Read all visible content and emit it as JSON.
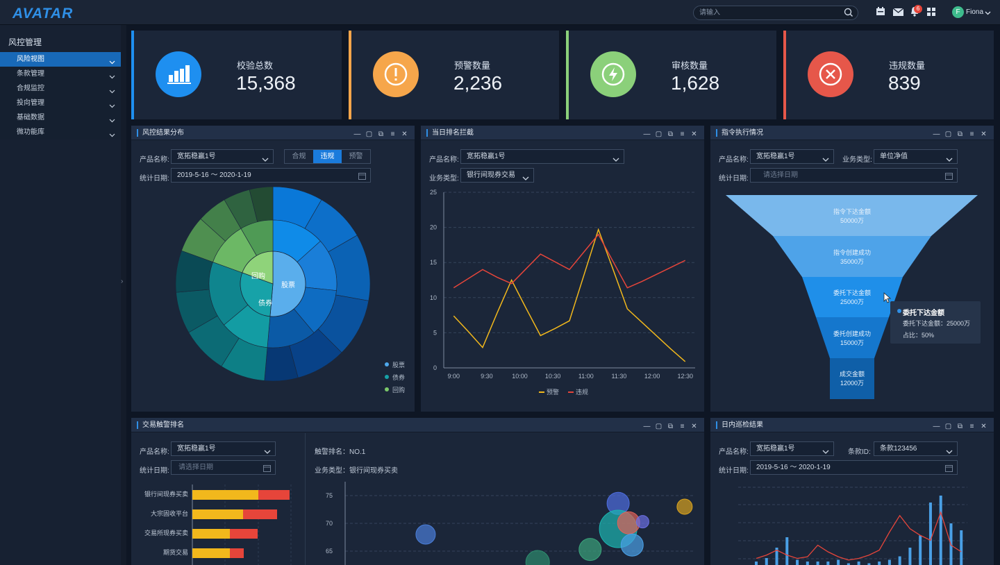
{
  "topbar": {
    "logo": "AVATAR",
    "search_placeholder": "请输入",
    "notification_count": "6",
    "user_initial": "F",
    "user_name": "Fiona"
  },
  "sidebar": {
    "title": "风控管理",
    "items": [
      {
        "label": "风险视图",
        "active": true
      },
      {
        "label": "条款管理"
      },
      {
        "label": "合规监控"
      },
      {
        "label": "投向管理"
      },
      {
        "label": "基础数据"
      },
      {
        "label": "微功能库"
      }
    ]
  },
  "stats": [
    {
      "label": "校验总数",
      "value": "15,368",
      "color": "#1e8ff0",
      "icon": "bar-chart-icon"
    },
    {
      "label": "预警数量",
      "value": "2,236",
      "color": "#f6a64b",
      "icon": "alert-icon"
    },
    {
      "label": "审核数量",
      "value": "1,628",
      "color": "#8bd07a",
      "icon": "lightning-icon"
    },
    {
      "label": "违规数量",
      "value": "839",
      "color": "#e6574a",
      "icon": "close-circle-icon"
    }
  ],
  "panel1": {
    "title": "风控结果分布",
    "product_label": "产品名称:",
    "product_value": "宽拓稳赢1号",
    "tabs": [
      "合规",
      "违规",
      "预警"
    ],
    "active_tab": "违规",
    "date_label": "统计日期:",
    "date_value": "2019-5-16 ～ 2020-1-19",
    "center_labels": [
      "回购",
      "股票",
      "债券"
    ],
    "legend": [
      "股票",
      "债券",
      "回购"
    ],
    "colors": {
      "股票": "#4fa8ec",
      "债券": "#17a2a8",
      "回购": "#7bc86a"
    }
  },
  "panel2": {
    "title": "当日排名拦截",
    "product_label": "产品名称:",
    "product_value": "宽拓稳赢1号",
    "biz_label": "业务类型:",
    "biz_value": "银行间现券交易"
  },
  "panel3": {
    "title": "指令执行情况",
    "product_label": "产品名称:",
    "product_value": "宽拓稳赢1号",
    "biz_label": "业务类型:",
    "biz_value": "单位净值",
    "date_label": "统计日期:",
    "date_placeholder": "请选择日期",
    "funnel": [
      {
        "name": "指令下达金额",
        "value": "50000万",
        "color": "#79b8ec"
      },
      {
        "name": "指令创建成功",
        "value": "35000万",
        "color": "#4ea3e9"
      },
      {
        "name": "委托下达金额",
        "value": "25000万",
        "color": "#1f8fe9"
      },
      {
        "name": "委托创建成功",
        "value": "15000万",
        "color": "#1577cd"
      },
      {
        "name": "成交金额",
        "value": "12000万",
        "color": "#0f5fa8"
      }
    ],
    "tooltip": {
      "title": "委托下达金额",
      "line1": "委托下达金额：25000万",
      "line2": "占比：50%"
    }
  },
  "panel4": {
    "title": "交易触警排名",
    "product_label": "产品名称:",
    "product_value": "宽拓稳赢1号",
    "date_label": "统计日期:",
    "date_placeholder": "请选择日期",
    "rank_label": "触警排名：",
    "rank_value": "NO.1",
    "biz_label": "业务类型：",
    "biz_value": "银行间现券买卖"
  },
  "panel5": {
    "title": "日内巡检结果",
    "product_label": "产品名称:",
    "product_value": "宽拓稳赢1号",
    "clause_label": "条款ID:",
    "clause_value": "条款123456",
    "date_label": "统计日期:",
    "date_value": "2019-5-16 ～ 2020-1-19"
  },
  "chart_data": [
    {
      "type": "line",
      "x": [
        "9:00",
        "9:30",
        "10:00",
        "10:30",
        "11:00",
        "11:30",
        "12:00",
        "12:30"
      ],
      "ylim": [
        0,
        25
      ],
      "yticks": [
        0,
        5,
        10,
        15,
        20,
        25
      ],
      "series": [
        {
          "name": "预警",
          "color": "#f2b81c",
          "x": [
            0,
            0.5,
            1,
            1.5,
            2,
            2.5,
            3,
            3.5,
            4,
            4.5,
            5,
            5.5,
            6,
            6.5,
            7,
            7.5,
            8
          ],
          "values": [
            7.4,
            5.2,
            2.9,
            7.8,
            12.5,
            8.5,
            4.6,
            5.6,
            6.7,
            13.2,
            19.7,
            14.1,
            8.4,
            6.5,
            4.6,
            2.7,
            0.9
          ]
        },
        {
          "name": "违规",
          "color": "#e6453a",
          "x": [
            0,
            0.5,
            1,
            1.5,
            2,
            2.5,
            3,
            3.5,
            4,
            4.5,
            5,
            5.5,
            6,
            6.5,
            7,
            7.5,
            8
          ],
          "values": [
            11.4,
            12.7,
            14.0,
            12.9,
            12.0,
            14.1,
            16.2,
            15.1,
            14.0,
            16.5,
            19.0,
            15.2,
            11.4,
            12.3,
            13.3,
            14.3,
            15.3
          ]
        }
      ],
      "legend": [
        "预警",
        "违规"
      ]
    },
    {
      "type": "bar",
      "categories": [
        "银行间现券买卖",
        "大宗固收平台",
        "交易所现券买卖",
        "期货交易"
      ],
      "series": [
        {
          "color": "#f2b81c",
          "values": [
            95,
            73,
            54,
            54
          ]
        },
        {
          "color": "#e6453a",
          "values": [
            45,
            49,
            40,
            20
          ]
        }
      ]
    },
    {
      "type": "scatter",
      "yticks": [
        65,
        70,
        75
      ],
      "ylim": [
        62.5,
        77.5
      ],
      "points": [
        {
          "x": 0.23,
          "y": 68.0,
          "r": 14,
          "color": "#4a7ed8"
        },
        {
          "x": 0.55,
          "y": 63.0,
          "r": 17,
          "color": "#2e8c6e"
        },
        {
          "x": 0.7,
          "y": 65.3,
          "r": 16,
          "color": "#3aa37a"
        },
        {
          "x": 0.78,
          "y": 73.6,
          "r": 16,
          "color": "#4e6ee0"
        },
        {
          "x": 0.78,
          "y": 69.0,
          "r": 27,
          "color": "#1cb5b0"
        },
        {
          "x": 0.81,
          "y": 70.1,
          "r": 16,
          "color": "#e0635a"
        },
        {
          "x": 0.82,
          "y": 66.1,
          "r": 16,
          "color": "#4aa0e6"
        },
        {
          "x": 0.85,
          "y": 70.3,
          "r": 9,
          "color": "#6b6fe3"
        },
        {
          "x": 0.97,
          "y": 73.0,
          "r": 11,
          "color": "#d9a31e"
        }
      ]
    },
    {
      "type": "bar",
      "series": [
        {
          "color": "#4aa0e6",
          "values": [
            2,
            4,
            10,
            16,
            3,
            2,
            2,
            2,
            3,
            1,
            2,
            1,
            2,
            3,
            5,
            10,
            17,
            36,
            40,
            24,
            20
          ]
        },
        {
          "color": "#e6453a",
          "values": [
            4,
            6,
            9,
            6,
            4,
            5,
            12,
            8,
            5,
            3,
            4,
            6,
            9,
            20,
            30,
            22,
            18,
            15,
            32,
            12,
            8
          ]
        }
      ]
    }
  ]
}
